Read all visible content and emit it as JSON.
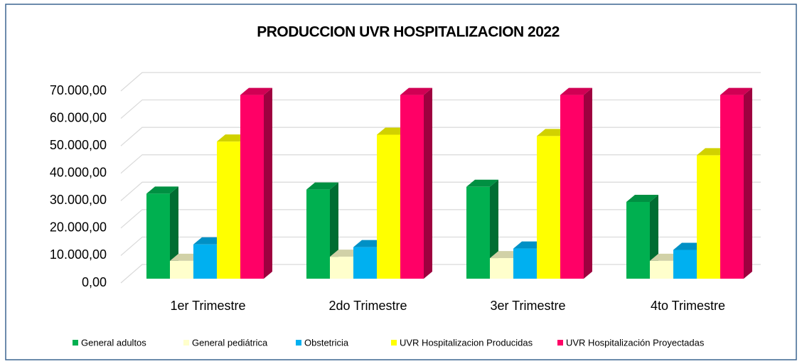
{
  "chart_data": {
    "type": "bar3d",
    "title": "PRODUCCION UVR HOSPITALIZACION 2022",
    "categories": [
      "1er Trimestre",
      "2do Trimestre",
      "3er Trimestre",
      "4to Trimestre"
    ],
    "series": [
      {
        "name": "General adultos",
        "color": "#00b050",
        "values": [
          31000,
          32500,
          33500,
          28000
        ]
      },
      {
        "name": "General pediátrica",
        "color": "#ffffcc",
        "values": [
          6500,
          8000,
          7500,
          6500
        ]
      },
      {
        "name": "Obstetricia",
        "color": "#00b0f0",
        "values": [
          12500,
          11500,
          11000,
          10500
        ]
      },
      {
        "name": "UVR Hospitalizacion Producidas",
        "color": "#ffff00",
        "values": [
          50000,
          52500,
          52000,
          45000
        ]
      },
      {
        "name": "UVR Hospitalización Proyectadas",
        "color": "#ff0066",
        "values": [
          67000,
          67000,
          67000,
          67000
        ]
      }
    ],
    "ylim": [
      0,
      70000
    ],
    "yticks": [
      {
        "value": 0,
        "label": "0,00"
      },
      {
        "value": 10000,
        "label": "10.000,00"
      },
      {
        "value": 20000,
        "label": "20.000,00"
      },
      {
        "value": 30000,
        "label": "30.000,00"
      },
      {
        "value": 40000,
        "label": "40.000,00"
      },
      {
        "value": 50000,
        "label": "50.000,00"
      },
      {
        "value": 60000,
        "label": "60.000,00"
      },
      {
        "value": 70000,
        "label": "70.000,00"
      }
    ],
    "grid": true
  }
}
